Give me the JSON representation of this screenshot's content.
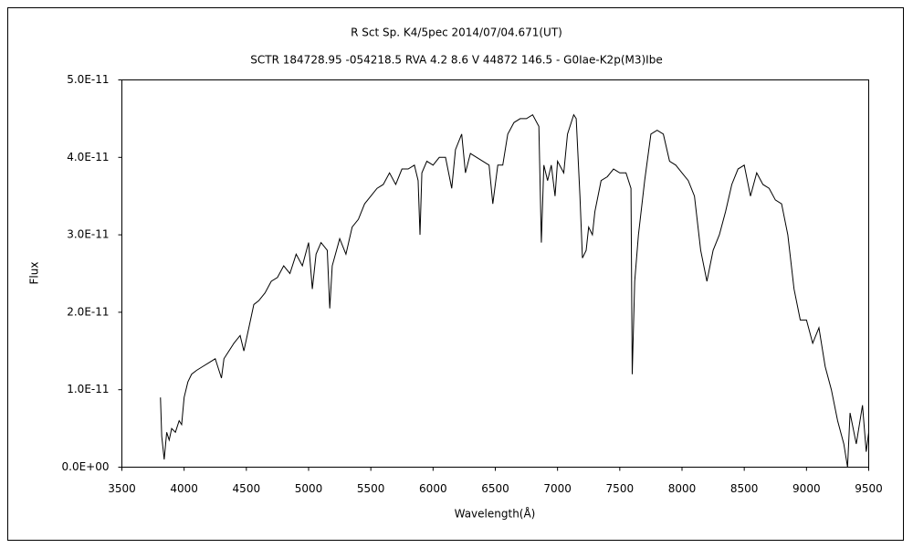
{
  "chart_data": {
    "type": "line",
    "title": "R Sct    Sp. K4/5pec    2014/07/04.671(UT)",
    "subtitle": "SCTR 184728.95 -054218.5 RVA 4.2 8.6 V 44872 146.5 - G0Iae-K2p(M3)Ibe",
    "x_label": "Wavelength(Å)",
    "y_label": "Flux",
    "xlim": [
      3500,
      9500
    ],
    "xticks": [
      3500,
      4000,
      4500,
      5000,
      5500,
      6000,
      6500,
      7000,
      7500,
      8000,
      8500,
      9000,
      9500
    ],
    "ylim": [
      0,
      5e-11
    ],
    "yticks": [
      {
        "value": 0,
        "label": "0.0E+00"
      },
      {
        "value": 1e-11,
        "label": "1.0E-11"
      },
      {
        "value": 2e-11,
        "label": "2.0E-11"
      },
      {
        "value": 3e-11,
        "label": "3.0E-11"
      },
      {
        "value": 4e-11,
        "label": "4.0E-11"
      },
      {
        "value": 5e-11,
        "label": "5.0E-11"
      }
    ],
    "grid": false,
    "color": "#000000",
    "x": [
      3810,
      3820,
      3840,
      3860,
      3880,
      3900,
      3930,
      3960,
      3980,
      4000,
      4030,
      4060,
      4100,
      4150,
      4200,
      4250,
      4300,
      4320,
      4400,
      4450,
      4480,
      4520,
      4560,
      4600,
      4650,
      4700,
      4750,
      4800,
      4850,
      4900,
      4950,
      5000,
      5030,
      5060,
      5100,
      5150,
      5170,
      5190,
      5250,
      5300,
      5350,
      5400,
      5450,
      5500,
      5550,
      5600,
      5650,
      5700,
      5750,
      5800,
      5850,
      5880,
      5895,
      5910,
      5950,
      6000,
      6050,
      6100,
      6150,
      6180,
      6230,
      6260,
      6300,
      6350,
      6400,
      6450,
      6480,
      6520,
      6560,
      6600,
      6650,
      6700,
      6750,
      6800,
      6850,
      6870,
      6890,
      6920,
      6950,
      6980,
      7000,
      7050,
      7080,
      7130,
      7150,
      7180,
      7200,
      7230,
      7250,
      7280,
      7300,
      7350,
      7400,
      7450,
      7500,
      7550,
      7590,
      7600,
      7620,
      7650,
      7700,
      7750,
      7800,
      7850,
      7900,
      7950,
      8000,
      8050,
      8100,
      8150,
      8200,
      8250,
      8300,
      8350,
      8400,
      8450,
      8500,
      8550,
      8600,
      8650,
      8700,
      8750,
      8800,
      8850,
      8900,
      8950,
      9000,
      9050,
      9100,
      9150,
      9200,
      9250,
      9300,
      9330,
      9350,
      9400,
      9450,
      9480,
      9500
    ],
    "values": [
      9e-12,
      4e-12,
      1e-12,
      4.5e-12,
      3.5e-12,
      5e-12,
      4.5e-12,
      6e-12,
      5.5e-12,
      9e-12,
      1.1e-11,
      1.2e-11,
      1.25e-11,
      1.3e-11,
      1.35e-11,
      1.4e-11,
      1.15e-11,
      1.4e-11,
      1.6e-11,
      1.7e-11,
      1.5e-11,
      1.8e-11,
      2.1e-11,
      2.15e-11,
      2.25e-11,
      2.4e-11,
      2.45e-11,
      2.6e-11,
      2.5e-11,
      2.75e-11,
      2.6e-11,
      2.9e-11,
      2.3e-11,
      2.75e-11,
      2.9e-11,
      2.8e-11,
      2.05e-11,
      2.6e-11,
      2.95e-11,
      2.75e-11,
      3.1e-11,
      3.2e-11,
      3.4e-11,
      3.5e-11,
      3.6e-11,
      3.65e-11,
      3.8e-11,
      3.65e-11,
      3.85e-11,
      3.85e-11,
      3.9e-11,
      3.7e-11,
      3e-11,
      3.8e-11,
      3.95e-11,
      3.9e-11,
      4e-11,
      4e-11,
      3.6e-11,
      4.1e-11,
      4.3e-11,
      3.8e-11,
      4.05e-11,
      4e-11,
      3.95e-11,
      3.9e-11,
      3.4e-11,
      3.9e-11,
      3.9e-11,
      4.3e-11,
      4.45e-11,
      4.5e-11,
      4.5e-11,
      4.55e-11,
      4.4e-11,
      2.9e-11,
      3.9e-11,
      3.7e-11,
      3.9e-11,
      3.5e-11,
      3.95e-11,
      3.8e-11,
      4.3e-11,
      4.55e-11,
      4.5e-11,
      3.5e-11,
      2.7e-11,
      2.8e-11,
      3.1e-11,
      3e-11,
      3.3e-11,
      3.7e-11,
      3.75e-11,
      3.85e-11,
      3.8e-11,
      3.8e-11,
      3.6e-11,
      1.2e-11,
      2.4e-11,
      3e-11,
      3.7e-11,
      4.3e-11,
      4.35e-11,
      4.3e-11,
      3.95e-11,
      3.9e-11,
      3.8e-11,
      3.7e-11,
      3.5e-11,
      2.8e-11,
      2.4e-11,
      2.8e-11,
      3e-11,
      3.3e-11,
      3.65e-11,
      3.85e-11,
      3.9e-11,
      3.5e-11,
      3.8e-11,
      3.65e-11,
      3.6e-11,
      3.45e-11,
      3.4e-11,
      3e-11,
      2.3e-11,
      1.9e-11,
      1.9e-11,
      1.6e-11,
      1.8e-11,
      1.3e-11,
      1e-11,
      6e-12,
      3e-12,
      0,
      7e-12,
      3e-12,
      8e-12,
      2e-12,
      4.5e-12
    ]
  }
}
